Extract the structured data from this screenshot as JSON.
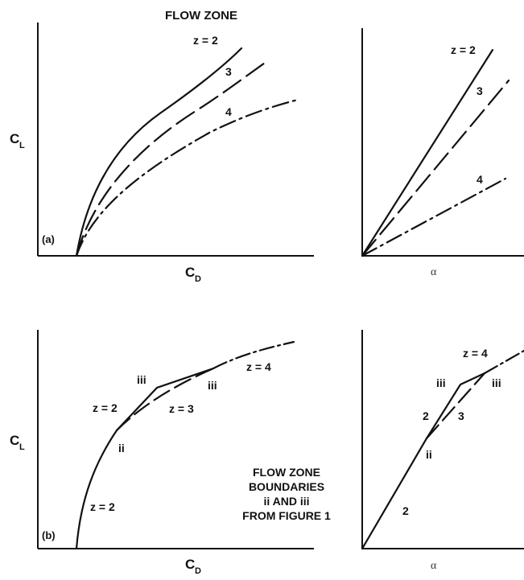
{
  "chart_data": [
    {
      "panel": "a-left",
      "type": "line",
      "panel_label": "(a)",
      "title": "FLOW ZONE",
      "xlabel": "C_D",
      "ylabel": "C_L",
      "series": [
        {
          "name": "z = 2",
          "line_style": "solid"
        },
        {
          "name": "3",
          "line_style": "long-dash"
        },
        {
          "name": "4",
          "line_style": "dash-dot"
        }
      ]
    },
    {
      "panel": "a-right",
      "type": "line",
      "xlabel": "α",
      "series": [
        {
          "name": "z = 2",
          "line_style": "solid"
        },
        {
          "name": "3",
          "line_style": "long-dash"
        },
        {
          "name": "4",
          "line_style": "dash-dot"
        }
      ]
    },
    {
      "panel": "b-left",
      "type": "line",
      "panel_label": "(b)",
      "xlabel": "C_D",
      "ylabel": "C_L",
      "annotations": [
        "z = 2",
        "ii",
        "z = 2",
        "iii",
        "z = 3",
        "iii",
        "z = 4"
      ],
      "note": [
        "FLOW ZONE",
        "BOUNDARIES",
        "ii AND iii",
        "FROM FIGURE 1"
      ]
    },
    {
      "panel": "b-right",
      "type": "line",
      "xlabel": "α",
      "annotations": [
        "2",
        "ii",
        "2",
        "3",
        "iii",
        "iii",
        "z = 4"
      ]
    }
  ]
}
